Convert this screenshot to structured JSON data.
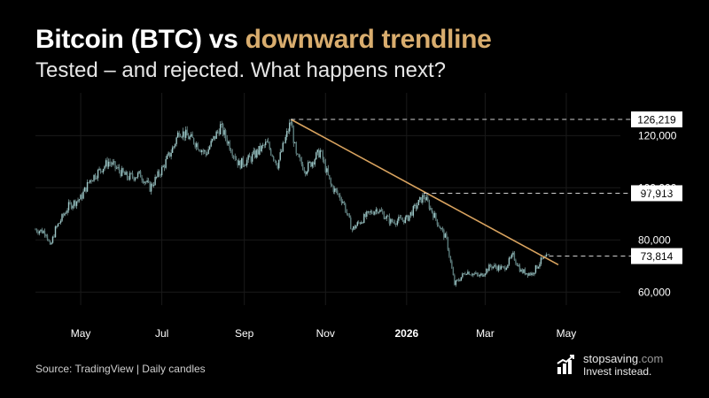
{
  "header": {
    "title_main": "Bitcoin (BTC) vs ",
    "title_accent": "downward trendline",
    "subtitle": "Tested – and rejected. What happens next?"
  },
  "chart_data": {
    "type": "candlestick",
    "title": "Bitcoin (BTC) vs downward trendline",
    "subtitle": "Tested – and rejected. What happens next?",
    "x_ticks": [
      "May",
      "Jul",
      "Sep",
      "Nov",
      "2026",
      "Mar",
      "May"
    ],
    "x_tick_dates": [
      "2025-05-01",
      "2025-07-01",
      "2025-09-01",
      "2025-11-01",
      "2026-01-01",
      "2026-03-01",
      "2026-05-01"
    ],
    "y_ticks": [
      "60,000",
      "80,000",
      "100,000",
      "120,000"
    ],
    "y_tick_values": [
      60000,
      80000,
      100000,
      120000
    ],
    "ylim": [
      55000,
      133000
    ],
    "xlim": [
      "2025-03-28",
      "2026-05-15"
    ],
    "grid": true,
    "price_path": [
      [
        "2025-03-28",
        84000
      ],
      [
        "2025-04-05",
        83000
      ],
      [
        "2025-04-08",
        77000
      ],
      [
        "2025-04-12",
        84000
      ],
      [
        "2025-04-22",
        93000
      ],
      [
        "2025-05-01",
        96000
      ],
      [
        "2025-05-08",
        103000
      ],
      [
        "2025-05-22",
        110000
      ],
      [
        "2025-06-05",
        104000
      ],
      [
        "2025-06-15",
        105000
      ],
      [
        "2025-06-22",
        100000
      ],
      [
        "2025-07-01",
        107000
      ],
      [
        "2025-07-10",
        116000
      ],
      [
        "2025-07-14",
        122000
      ],
      [
        "2025-07-25",
        118000
      ],
      [
        "2025-08-03",
        113000
      ],
      [
        "2025-08-14",
        123500
      ],
      [
        "2025-08-28",
        109000
      ],
      [
        "2025-09-05",
        111000
      ],
      [
        "2025-09-18",
        117000
      ],
      [
        "2025-09-26",
        109000
      ],
      [
        "2025-10-06",
        125500
      ],
      [
        "2025-10-10",
        112000
      ],
      [
        "2025-10-17",
        107000
      ],
      [
        "2025-10-28",
        114000
      ],
      [
        "2025-11-05",
        101000
      ],
      [
        "2025-11-14",
        95000
      ],
      [
        "2025-11-21",
        84000
      ],
      [
        "2025-12-01",
        89000
      ],
      [
        "2025-12-10",
        92000
      ],
      [
        "2025-12-20",
        87000
      ],
      [
        "2026-01-01",
        88000
      ],
      [
        "2026-01-14",
        97000
      ],
      [
        "2026-01-20",
        91000
      ],
      [
        "2026-01-31",
        80000
      ],
      [
        "2026-02-06",
        63000
      ],
      [
        "2026-02-15",
        68000
      ],
      [
        "2026-02-25",
        66000
      ],
      [
        "2026-03-05",
        70000
      ],
      [
        "2026-03-15",
        69000
      ],
      [
        "2026-03-22",
        74000
      ],
      [
        "2026-03-28",
        68000
      ],
      [
        "2026-04-05",
        67000
      ],
      [
        "2026-04-12",
        72000
      ],
      [
        "2026-04-18",
        73800
      ]
    ],
    "trendline": {
      "start": [
        "2025-10-06",
        126219
      ],
      "end": [
        "2026-04-25",
        70500
      ],
      "color": "#d9a35f"
    },
    "levels": [
      {
        "date": "2025-10-06",
        "value": 126219,
        "label": "126,219"
      },
      {
        "date": "2026-01-14",
        "value": 97913,
        "label": "97,913"
      },
      {
        "date": "2026-04-18",
        "value": 73814,
        "label": "73,814"
      }
    ]
  },
  "footer": {
    "source": "Source: TradingView | Daily candles",
    "brand_name_bold": "stopsaving",
    "brand_name_suffix": ".com",
    "brand_tagline": "Invest instead."
  },
  "colors": {
    "background": "#000000",
    "accent": "#d9ad6e",
    "candle": "#9fc9c9",
    "grid": "#1a1a1a",
    "trendline": "#d9a35f"
  }
}
